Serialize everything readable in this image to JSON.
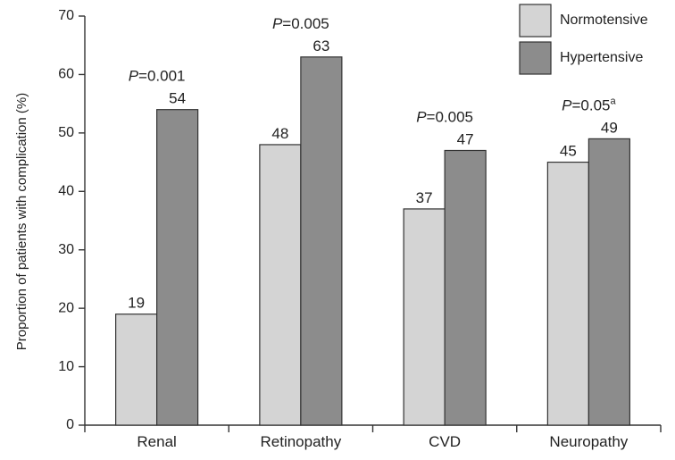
{
  "chart_data": {
    "type": "bar",
    "ylabel": "Proportion of patients with complication (%)",
    "xlabel": "",
    "ylim": [
      0,
      70
    ],
    "yticks": [
      0,
      10,
      20,
      30,
      40,
      50,
      60,
      70
    ],
    "categories": [
      "Renal",
      "Retinopathy",
      "CVD",
      "Neuropathy"
    ],
    "series": [
      {
        "name": "Normotensive",
        "values": [
          19,
          48,
          37,
          45
        ],
        "color": "#d4d4d4"
      },
      {
        "name": "Hypertensive",
        "values": [
          54,
          63,
          47,
          49
        ],
        "color": "#8c8c8c"
      }
    ],
    "annotations": [
      {
        "p_prefix": "P",
        "p_value": "=0.001",
        "p_sup": ""
      },
      {
        "p_prefix": "P",
        "p_value": "=0.005",
        "p_sup": ""
      },
      {
        "p_prefix": "P",
        "p_value": "=0.005",
        "p_sup": ""
      },
      {
        "p_prefix": "P",
        "p_value": "=0.05",
        "p_sup": "a"
      }
    ],
    "legend_position": "top-right",
    "grid": false
  }
}
